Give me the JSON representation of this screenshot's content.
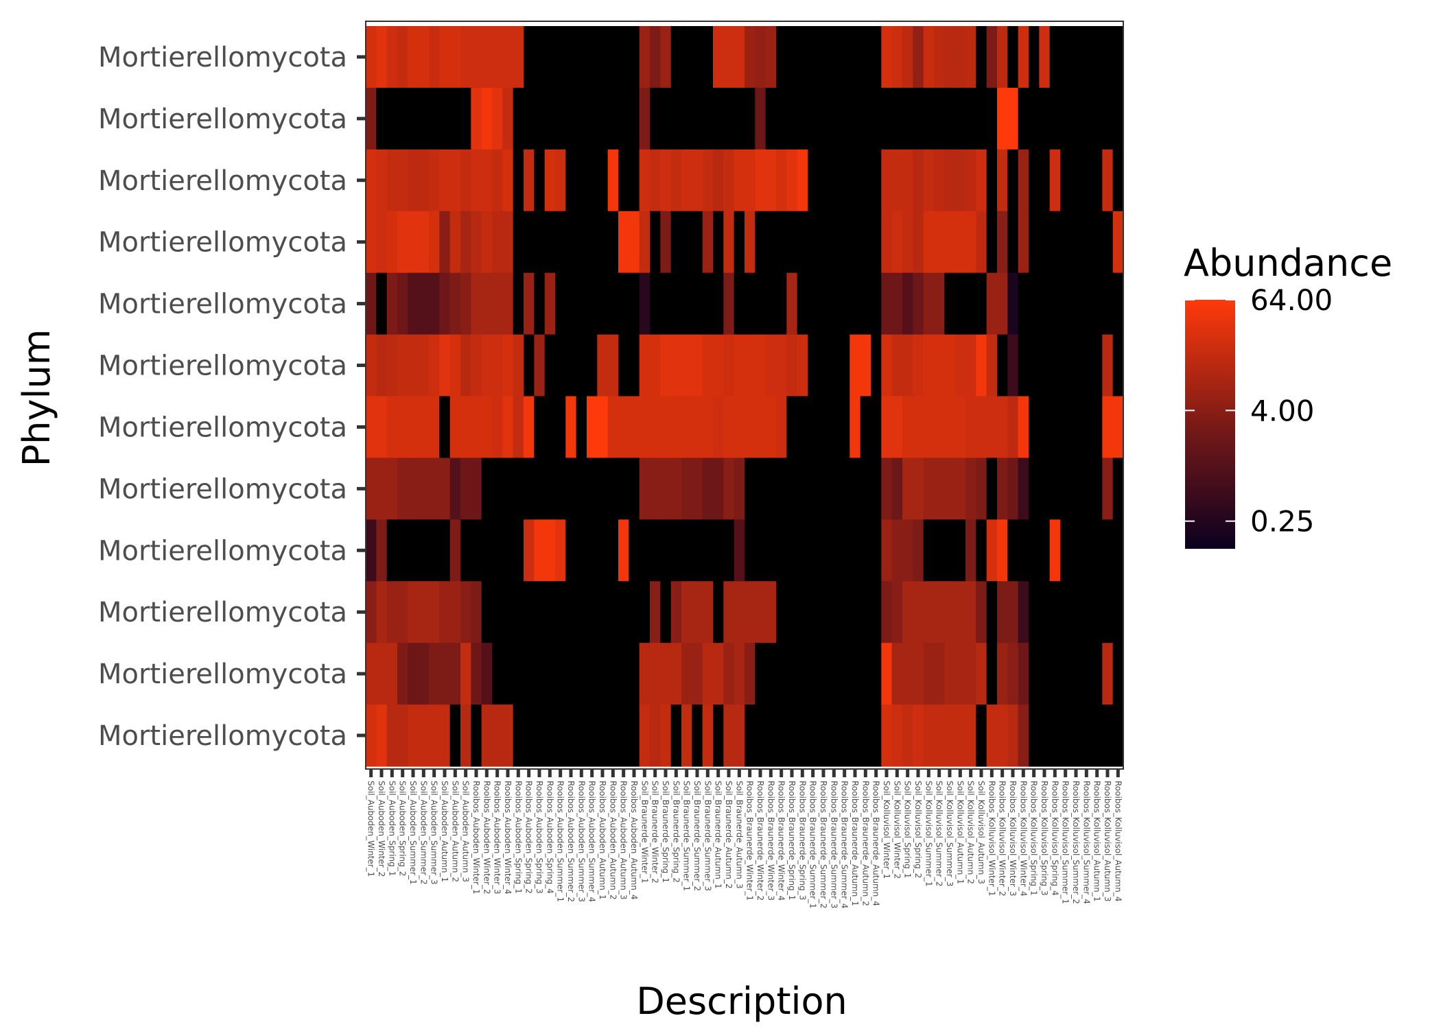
{
  "chart_data": {
    "type": "heatmap",
    "title": "",
    "xlabel": "Description",
    "ylabel": "Phylum",
    "color_scale": {
      "title": "Abundance",
      "scale": "log",
      "ticks": [
        0.25,
        4,
        64
      ],
      "tick_labels": [
        "0.25",
        "4.00",
        "64.00"
      ],
      "low_color": "#0a0020",
      "mid_color": "#7a1a17",
      "high_color": "#ff3a0a",
      "zero_color": "#000000"
    },
    "legend_position": "right",
    "grid": false,
    "x": [
      "Soil_Auboden_Winter_1",
      "Soil_Auboden_Winter_2",
      "Soil_Auboden_Spring_1",
      "Soil_Auboden_Spring_2",
      "Soil_Auboden_Summer_1",
      "Soil_Auboden_Summer_2",
      "Soil_Auboden_Summer_3",
      "Soil_Auboden_Autumn_1",
      "Soil_Auboden_Autumn_2",
      "Soil_Auboden_Autumn_3",
      "Rooibos_Auboden_Winter_1",
      "Rooibos_Auboden_Winter_2",
      "Rooibos_Auboden_Winter_3",
      "Rooibos_Auboden_Winter_4",
      "Rooibos_Auboden_Spring_1",
      "Rooibos_Auboden_Spring_2",
      "Rooibos_Auboden_Spring_3",
      "Rooibos_Auboden_Spring_4",
      "Rooibos_Auboden_Summer_1",
      "Rooibos_Auboden_Summer_2",
      "Rooibos_Auboden_Summer_3",
      "Rooibos_Auboden_Summer_4",
      "Rooibos_Auboden_Autumn_1",
      "Rooibos_Auboden_Autumn_2",
      "Rooibos_Auboden_Autumn_3",
      "Rooibos_Auboden_Autumn_4",
      "Soil_Braunerde_Winter_1",
      "Soil_Braunerde_Winter_2",
      "Soil_Braunerde_Spring_1",
      "Soil_Braunerde_Spring_2",
      "Soil_Braunerde_Summer_1",
      "Soil_Braunerde_Summer_2",
      "Soil_Braunerde_Summer_3",
      "Soil_Braunerde_Autumn_1",
      "Soil_Braunerde_Autumn_2",
      "Soil_Braunerde_Autumn_3",
      "Rooibos_Braunerde_Winter_1",
      "Rooibos_Braunerde_Winter_2",
      "Rooibos_Braunerde_Winter_3",
      "Rooibos_Braunerde_Winter_4",
      "Rooibos_Braunerde_Spring_1",
      "Rooibos_Braunerde_Spring_3",
      "Rooibos_Braunerde_Summer_1",
      "Rooibos_Braunerde_Summer_2",
      "Rooibos_Braunerde_Summer_3",
      "Rooibos_Braunerde_Summer_4",
      "Rooibos_Braunerde_Autumn_1",
      "Rooibos_Braunerde_Autumn_2",
      "Rooibos_Braunerde_Autumn_4",
      "Soil_Kolluvisol_Winter_1",
      "Soil_Kolluvisol_Winter_2",
      "Soil_Kolluvisol_Spring_1",
      "Soil_Kolluvisol_Spring_2",
      "Soil_Kolluvisol_Summer_1",
      "Soil_Kolluvisol_Summer_2",
      "Soil_Kolluvisol_Summer_3",
      "Soil_Kolluvisol_Autumn_1",
      "Soil_Kolluvisol_Autumn_2",
      "Soil_Kolluvisol_Autumn_3",
      "Rooibos_Kolluvisol_Winter_1",
      "Rooibos_Kolluvisol_Winter_2",
      "Rooibos_Kolluvisol_Winter_3",
      "Rooibos_Kolluvisol_Winter_4",
      "Rooibos_Kolluvisol_Spring_1",
      "Rooibos_Kolluvisol_Spring_3",
      "Rooibos_Kolluvisol_Spring_4",
      "Rooibos_Kolluvisol_Summer_1",
      "Rooibos_Kolluvisol_Summer_2",
      "Rooibos_Kolluvisol_Summer_4",
      "Rooibos_Kolluvisol_Autumn_1",
      "Rooibos_Kolluvisol_Autumn_3",
      "Rooibos_Kolluvisol_Autumn_4"
    ],
    "y": [
      "Mortierellomycota",
      "Mortierellomycota",
      "Mortierellomycota",
      "Mortierellomycota",
      "Mortierellomycota",
      "Mortierellomycota",
      "Mortierellomycota",
      "Mortierellomycota",
      "Mortierellomycota",
      "Mortierellomycota",
      "Mortierellomycota",
      "Mortierellomycota"
    ],
    "values": [
      [
        24,
        32,
        20,
        16,
        24,
        24,
        18,
        24,
        24,
        20,
        20,
        20,
        20,
        20,
        20,
        0,
        0,
        0,
        0,
        0,
        0,
        0,
        0,
        0,
        0,
        0,
        6,
        3,
        6,
        0,
        0,
        0,
        0,
        20,
        20,
        20,
        6,
        5,
        6,
        0,
        0,
        0,
        0,
        0,
        0,
        0,
        0,
        0,
        0,
        24,
        20,
        14,
        5,
        18,
        14,
        12,
        12,
        14,
        0,
        3,
        14,
        0,
        20,
        0,
        20,
        0,
        0,
        0,
        0,
        0,
        0,
        0,
        0
      ],
      [
        3,
        0,
        0,
        0,
        0,
        0,
        0,
        0,
        0,
        0,
        32,
        48,
        32,
        16,
        0,
        0,
        0,
        0,
        0,
        0,
        0,
        0,
        0,
        0,
        0,
        0,
        3,
        0,
        0,
        0,
        0,
        0,
        0,
        0,
        0,
        0,
        0,
        2,
        0,
        0,
        0,
        0,
        0,
        0,
        0,
        0,
        0,
        0,
        0,
        0,
        0,
        0,
        0,
        0,
        0,
        0,
        0,
        0,
        0,
        0,
        64,
        64,
        0,
        0,
        0,
        0,
        0,
        0,
        0,
        0,
        0,
        0,
        0
      ],
      [
        24,
        20,
        16,
        16,
        14,
        14,
        16,
        20,
        20,
        16,
        20,
        20,
        16,
        24,
        0,
        16,
        0,
        24,
        20,
        0,
        0,
        0,
        0,
        48,
        0,
        0,
        20,
        16,
        20,
        16,
        20,
        20,
        16,
        12,
        16,
        24,
        24,
        32,
        32,
        24,
        32,
        48,
        0,
        0,
        0,
        0,
        0,
        0,
        0,
        16,
        16,
        16,
        12,
        16,
        14,
        12,
        12,
        14,
        20,
        0,
        16,
        0,
        6,
        0,
        0,
        20,
        0,
        0,
        0,
        0,
        16,
        0,
        0
      ],
      [
        24,
        20,
        24,
        32,
        32,
        32,
        24,
        4,
        16,
        8,
        12,
        16,
        12,
        12,
        0,
        0,
        0,
        0,
        0,
        0,
        0,
        0,
        0,
        0,
        48,
        48,
        16,
        0,
        3,
        0,
        0,
        0,
        6,
        0,
        16,
        0,
        16,
        0,
        0,
        0,
        0,
        0,
        0,
        0,
        0,
        0,
        0,
        0,
        0,
        16,
        20,
        16,
        12,
        24,
        24,
        24,
        24,
        24,
        14,
        0,
        4,
        0,
        6,
        0,
        0,
        0,
        0,
        0,
        0,
        0,
        0,
        24,
        24
      ],
      [
        2,
        0,
        3,
        2,
        1,
        1,
        1,
        2,
        3,
        4,
        8,
        8,
        8,
        8,
        0,
        6,
        0,
        6,
        0,
        0,
        0,
        0,
        0,
        0,
        0,
        0,
        0.3,
        0,
        0,
        0,
        0,
        0,
        0,
        0,
        3,
        0,
        0,
        0,
        0,
        0,
        8,
        0,
        0,
        0,
        0,
        0,
        0,
        0,
        0,
        2,
        2,
        1,
        2,
        4,
        4,
        0,
        0,
        0,
        0,
        6,
        6,
        0.2,
        0,
        0,
        0,
        0,
        0,
        0,
        0,
        0,
        0,
        0,
        0
      ],
      [
        16,
        12,
        14,
        16,
        16,
        16,
        20,
        32,
        24,
        12,
        16,
        20,
        20,
        24,
        16,
        0,
        6,
        0,
        0,
        0,
        0,
        0,
        16,
        16,
        0,
        0,
        24,
        24,
        32,
        32,
        32,
        32,
        24,
        24,
        20,
        24,
        24,
        24,
        20,
        20,
        16,
        20,
        0,
        0,
        0,
        0,
        48,
        48,
        0,
        24,
        16,
        16,
        20,
        24,
        24,
        24,
        20,
        20,
        48,
        16,
        0,
        0.5,
        0,
        0,
        0,
        0,
        0,
        0,
        0,
        0,
        12,
        0,
        0
      ],
      [
        32,
        32,
        24,
        24,
        24,
        24,
        24,
        0,
        24,
        24,
        24,
        24,
        20,
        32,
        16,
        48,
        0,
        0,
        0,
        48,
        0,
        64,
        64,
        24,
        24,
        24,
        24,
        24,
        24,
        24,
        24,
        24,
        24,
        20,
        24,
        24,
        24,
        24,
        24,
        20,
        0,
        0,
        0,
        0,
        0,
        0,
        48,
        0,
        0,
        32,
        32,
        24,
        24,
        24,
        24,
        24,
        24,
        20,
        20,
        20,
        20,
        14,
        48,
        0,
        0,
        0,
        0,
        0,
        0,
        0,
        48,
        48,
        48
      ],
      [
        6,
        6,
        6,
        4,
        4,
        4,
        4,
        4,
        1,
        2,
        2,
        0,
        0,
        0,
        0,
        0,
        0,
        0,
        0,
        0,
        0,
        0,
        0,
        0,
        0,
        0,
        4,
        4,
        4,
        4,
        3,
        3,
        2,
        2,
        4,
        3,
        0,
        0,
        0,
        0,
        0,
        0,
        0,
        0,
        0,
        0,
        0,
        0,
        0,
        3,
        2,
        8,
        8,
        6,
        6,
        6,
        6,
        4,
        3,
        0,
        3,
        2,
        0.5,
        0,
        0,
        0,
        0,
        0,
        0,
        0,
        4,
        0,
        0
      ],
      [
        0.5,
        3,
        0,
        0,
        0,
        0,
        0,
        0,
        3,
        0,
        0,
        0,
        0,
        0,
        0,
        20,
        48,
        48,
        32,
        0,
        0,
        0,
        0,
        0,
        48,
        0,
        0,
        0,
        0,
        0,
        0,
        0,
        0,
        0,
        0,
        1,
        0,
        0,
        0,
        0,
        0,
        0,
        0,
        0,
        0,
        0,
        0,
        0,
        0,
        6,
        4,
        4,
        3,
        0,
        0,
        0,
        0,
        3,
        0,
        24,
        48,
        0,
        0,
        0,
        0,
        48,
        0,
        0,
        0,
        0,
        0,
        0,
        0
      ],
      [
        4,
        8,
        6,
        6,
        8,
        8,
        8,
        6,
        6,
        4,
        3,
        0,
        0,
        0,
        0,
        0,
        0,
        0,
        0,
        0,
        0,
        0,
        0,
        0,
        0,
        0,
        0,
        4,
        0,
        4,
        8,
        8,
        8,
        0,
        8,
        8,
        8,
        8,
        8,
        0,
        0,
        0,
        0,
        0,
        0,
        0,
        0,
        0,
        0,
        3,
        4,
        8,
        8,
        8,
        8,
        8,
        8,
        8,
        3,
        0,
        3,
        3,
        0.5,
        0,
        0,
        0,
        0,
        0,
        0,
        0,
        0,
        0,
        0
      ],
      [
        12,
        12,
        12,
        3,
        2,
        2,
        3,
        3,
        3,
        16,
        2,
        1,
        0,
        0,
        0,
        0,
        0,
        0,
        0,
        0,
        0,
        0,
        0,
        0,
        0,
        0,
        12,
        12,
        12,
        12,
        6,
        6,
        12,
        12,
        6,
        8,
        4,
        0,
        0,
        0,
        0,
        0,
        0,
        0,
        0,
        0,
        0,
        0,
        0,
        48,
        8,
        8,
        8,
        6,
        6,
        8,
        8,
        8,
        12,
        0,
        6,
        4,
        2,
        0,
        0,
        0,
        0,
        0,
        0,
        0,
        12,
        0,
        0
      ],
      [
        24,
        32,
        12,
        12,
        16,
        16,
        16,
        16,
        0,
        12,
        0,
        12,
        12,
        12,
        0,
        0,
        0,
        0,
        0,
        0,
        0,
        0,
        0,
        0,
        0,
        0,
        16,
        12,
        16,
        0,
        16,
        0,
        16,
        0,
        12,
        12,
        0,
        0,
        0,
        0,
        0,
        0,
        0,
        0,
        0,
        0,
        0,
        0,
        0,
        24,
        20,
        16,
        20,
        16,
        16,
        16,
        16,
        16,
        0,
        16,
        16,
        12,
        4,
        0,
        0,
        0,
        0,
        0,
        0,
        0,
        0,
        0,
        0
      ]
    ]
  }
}
